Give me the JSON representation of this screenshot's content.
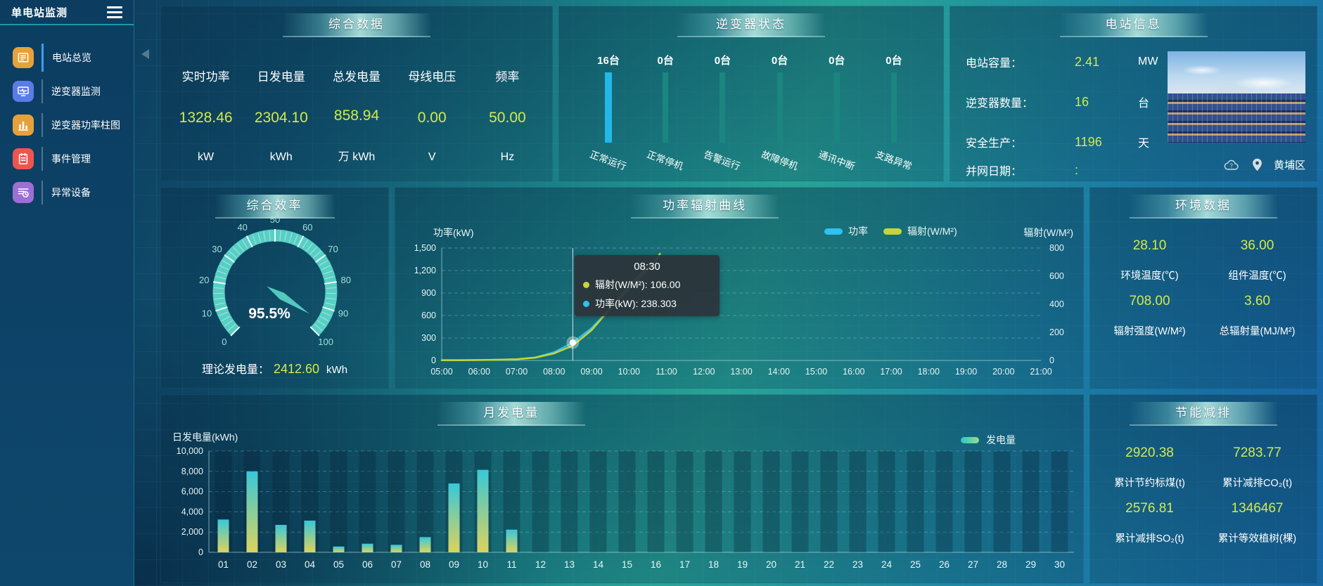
{
  "app": {
    "title": "单电站监测"
  },
  "sidebar": {
    "items": [
      {
        "label": "电站总览",
        "icon": "overview-icon",
        "color": "#E5A23C",
        "active": true
      },
      {
        "label": "逆变器监测",
        "icon": "inverter-monitor-icon",
        "color": "#5B7BE9",
        "active": false
      },
      {
        "label": "逆变器功率柱图",
        "icon": "power-bars-icon",
        "color": "#E5A23C",
        "active": false
      },
      {
        "label": "事件管理",
        "icon": "event-management-icon",
        "color": "#F0544F",
        "active": false
      },
      {
        "label": "异常设备",
        "icon": "abnormal-device-icon",
        "color": "#9B6FD6",
        "active": false
      }
    ]
  },
  "panels": {
    "summary": {
      "title": "综合数据",
      "metrics": [
        {
          "label": "实时功率",
          "value": "1328.46",
          "unit": "kW"
        },
        {
          "label": "日发电量",
          "value": "2304.10",
          "unit": "kWh"
        },
        {
          "label": "总发电量",
          "value": "858.94",
          "unit": "万 kWh"
        },
        {
          "label": "母线电压",
          "value": "0.00",
          "unit": "V"
        },
        {
          "label": "频率",
          "value": "50.00",
          "unit": "Hz"
        }
      ]
    },
    "inverter_status": {
      "title": "逆变器状态",
      "columns": [
        {
          "count": "16台",
          "label": "正常运行",
          "highlight": true
        },
        {
          "count": "0台",
          "label": "正常停机",
          "highlight": false
        },
        {
          "count": "0台",
          "label": "告警运行",
          "highlight": false
        },
        {
          "count": "0台",
          "label": "故障停机",
          "highlight": false
        },
        {
          "count": "0台",
          "label": "通讯中断",
          "highlight": false
        },
        {
          "count": "0台",
          "label": "支路异常",
          "highlight": false
        }
      ]
    },
    "station_info": {
      "title": "电站信息",
      "rows": [
        {
          "label": "电站容量：",
          "value": "2.41",
          "unit": "MW"
        },
        {
          "label": "逆变器数量：",
          "value": "16",
          "unit": "台"
        },
        {
          "label": "安全生产：",
          "value": "1196",
          "unit": "天"
        },
        {
          "label": "并网日期：",
          "value": ":",
          "unit": ""
        }
      ],
      "location": "黄埔区"
    },
    "efficiency": {
      "title": "综合效率",
      "display_value": "95.5%",
      "footer": {
        "label": "理论发电量：",
        "value": "2412.60",
        "unit": "kWh"
      }
    },
    "power_curve": {
      "title": "功率辐射曲线",
      "left_axis_title": "功率(kW)",
      "right_axis_title": "辐射(W/M²)",
      "legend": [
        {
          "name": "功率",
          "color": "#2FC1F0"
        },
        {
          "name": "辐射(W/M²)",
          "color": "#C8D435"
        }
      ],
      "tooltip": {
        "time": "08:30",
        "rows": [
          {
            "color": "#C8D435",
            "text": "辐射(W/M²): 106.00"
          },
          {
            "color": "#2FC1F0",
            "text": "功率(kW): 238.303"
          }
        ]
      }
    },
    "environment": {
      "title": "环境数据",
      "cells": [
        {
          "value": "28.10",
          "label": "环境温度(℃)"
        },
        {
          "value": "36.00",
          "label": "组件温度(℃)"
        },
        {
          "value": "708.00",
          "label": "辐射强度(W/M²)"
        },
        {
          "value": "3.60",
          "label": "总辐射量(MJ/M²)"
        }
      ]
    },
    "monthly": {
      "title": "月发电量",
      "axis_title": "日发电量(kWh)",
      "legend": "发电量"
    },
    "saving": {
      "title": "节能减排",
      "cells": [
        {
          "value": "2920.38",
          "label": "累计节约标煤(t)"
        },
        {
          "value": "7283.77",
          "label": "累计减排CO₂(t)"
        },
        {
          "value": "2576.81",
          "label": "累计减排SO₂(t)"
        },
        {
          "value": "1346467",
          "label": "累计等效植树(棵)"
        }
      ]
    }
  },
  "chart_data": [
    {
      "id": "inverter_status",
      "type": "bar",
      "title": "逆变器状态",
      "categories": [
        "正常运行",
        "正常停机",
        "告警运行",
        "故障停机",
        "通讯中断",
        "支路异常"
      ],
      "values": [
        16,
        0,
        0,
        0,
        0,
        0
      ],
      "unit": "台",
      "note": "equal-height status columns, first highlighted blue"
    },
    {
      "id": "efficiency_gauge",
      "type": "gauge",
      "title": "综合效率",
      "min": 0,
      "max": 100,
      "value": 95.5,
      "display": "95.5%",
      "tick_labels": [
        0,
        10,
        20,
        30,
        40,
        50,
        60,
        70,
        80,
        90,
        100
      ]
    },
    {
      "id": "power_radiation",
      "type": "line",
      "title": "功率辐射曲线",
      "x_range": [
        5,
        21
      ],
      "x_ticks": [
        "05:00",
        "06:00",
        "07:00",
        "08:00",
        "09:00",
        "10:00",
        "11:00",
        "12:00",
        "13:00",
        "14:00",
        "15:00",
        "16:00",
        "17:00",
        "18:00",
        "19:00",
        "20:00",
        "21:00"
      ],
      "x": [
        5,
        5.5,
        6,
        6.5,
        7,
        7.5,
        8,
        8.5,
        9,
        9.5,
        10,
        10.33,
        10.67,
        10.83
      ],
      "series": [
        {
          "name": "功率",
          "axis": "left",
          "color": "#2FC1F0",
          "values": [
            4,
            4,
            6,
            9,
            15,
            40,
            110,
            238.303,
            430,
            690,
            950,
            1120,
            1290,
            1400
          ]
        },
        {
          "name": "辐射(W/M²)",
          "axis": "right",
          "color": "#C8D435",
          "values": [
            2,
            2,
            3,
            5,
            9,
            20,
            50,
            106,
            215,
            370,
            530,
            620,
            700,
            760
          ]
        }
      ],
      "left_axis": {
        "title": "功率(kW)",
        "min": 0,
        "max": 1500,
        "ticks": [
          "0",
          "300",
          "600",
          "900",
          "1,200",
          "1,500"
        ]
      },
      "right_axis": {
        "title": "辐射(W/M²)",
        "min": 0,
        "max": 800,
        "ticks": [
          "0",
          "200",
          "400",
          "600",
          "800"
        ]
      },
      "crosshair_x": 8.5,
      "marker": {
        "x": 8.5,
        "power": 238.303,
        "radiation": 106
      }
    },
    {
      "id": "monthly_generation",
      "type": "bar",
      "title": "月发电量",
      "ylabel": "日发电量(kWh)",
      "legend": "发电量",
      "ylim": [
        0,
        10000
      ],
      "yticks": [
        "0",
        "2,000",
        "4,000",
        "6,000",
        "8,000",
        "10,000"
      ],
      "categories": [
        "01",
        "02",
        "03",
        "04",
        "05",
        "06",
        "07",
        "08",
        "09",
        "10",
        "11",
        "12",
        "13",
        "14",
        "15",
        "16",
        "17",
        "18",
        "19",
        "20",
        "21",
        "22",
        "23",
        "24",
        "25",
        "26",
        "27",
        "28",
        "29",
        "30"
      ],
      "values": [
        3240,
        8000,
        2710,
        3130,
        570,
        850,
        740,
        1500,
        6800,
        8150,
        2240,
        0,
        0,
        0,
        0,
        0,
        0,
        0,
        0,
        0,
        0,
        0,
        0,
        0,
        0,
        0,
        0,
        0,
        0,
        0
      ]
    }
  ],
  "colors": {
    "value_text": "#D3EA4D",
    "status_highlight": "#23B7E8",
    "status_normal": "#1B8680",
    "gauge_arc": "#58CFC4",
    "power_line": "#2FC1F0",
    "radiation_line": "#C8D435",
    "bar_gradient_bottom": "#DCD35E",
    "bar_gradient_top": "#38C7D8"
  }
}
